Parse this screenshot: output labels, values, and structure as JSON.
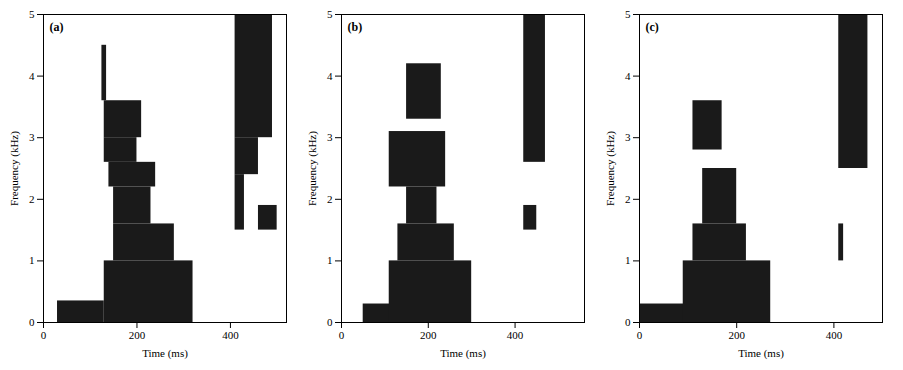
{
  "chart_data": [
    {
      "type": "spectrogram",
      "title": "(a)",
      "xlabel": "Time (ms)",
      "ylabel": "Frequency (kHz)",
      "xlim": [
        0,
        520
      ],
      "ylim": [
        0,
        5
      ],
      "xticks": [
        0,
        200,
        400
      ],
      "yticks": [
        0,
        1,
        2,
        3,
        4,
        5
      ],
      "color": "#1a1a1a",
      "grid": false,
      "regions": [
        {
          "t0": 30,
          "t1": 130,
          "f0": 0,
          "f1": 0.35
        },
        {
          "t0": 130,
          "t1": 320,
          "f0": 0,
          "f1": 1.0
        },
        {
          "t0": 150,
          "t1": 280,
          "f0": 1.0,
          "f1": 1.6
        },
        {
          "t0": 150,
          "t1": 230,
          "f0": 1.6,
          "f1": 2.2
        },
        {
          "t0": 140,
          "t1": 240,
          "f0": 2.2,
          "f1": 2.6
        },
        {
          "t0": 130,
          "t1": 200,
          "f0": 2.6,
          "f1": 3.0
        },
        {
          "t0": 130,
          "t1": 210,
          "f0": 3.0,
          "f1": 3.6
        },
        {
          "t0": 125,
          "t1": 135,
          "f0": 3.6,
          "f1": 4.5
        },
        {
          "t0": 410,
          "t1": 490,
          "f0": 3.0,
          "f1": 5.0
        },
        {
          "t0": 410,
          "t1": 460,
          "f0": 2.4,
          "f1": 3.0
        },
        {
          "t0": 410,
          "t1": 430,
          "f0": 1.5,
          "f1": 2.4
        },
        {
          "t0": 460,
          "t1": 500,
          "f0": 1.5,
          "f1": 1.9
        }
      ]
    },
    {
      "type": "spectrogram",
      "title": "(b)",
      "xlabel": "Time (ms)",
      "ylabel": "Frequency (kHz)",
      "xlim": [
        0,
        560
      ],
      "ylim": [
        0,
        5
      ],
      "xticks": [
        0,
        200,
        400
      ],
      "yticks": [
        0,
        1,
        2,
        3,
        4,
        5
      ],
      "color": "#1a1a1a",
      "grid": false,
      "regions": [
        {
          "t0": 50,
          "t1": 130,
          "f0": 0,
          "f1": 0.3
        },
        {
          "t0": 110,
          "t1": 300,
          "f0": 0,
          "f1": 1.0
        },
        {
          "t0": 130,
          "t1": 260,
          "f0": 1.0,
          "f1": 1.6
        },
        {
          "t0": 150,
          "t1": 220,
          "f0": 1.6,
          "f1": 2.2
        },
        {
          "t0": 110,
          "t1": 240,
          "f0": 2.2,
          "f1": 3.1
        },
        {
          "t0": 150,
          "t1": 230,
          "f0": 3.3,
          "f1": 4.2
        },
        {
          "t0": 420,
          "t1": 470,
          "f0": 2.6,
          "f1": 5.0
        },
        {
          "t0": 420,
          "t1": 450,
          "f0": 1.5,
          "f1": 1.9
        }
      ]
    },
    {
      "type": "spectrogram",
      "title": "(c)",
      "xlabel": "Time (ms)",
      "ylabel": "Frequency (kHz)",
      "xlim": [
        0,
        500
      ],
      "ylim": [
        0,
        5
      ],
      "xticks": [
        0,
        200,
        400
      ],
      "yticks": [
        0,
        1,
        2,
        3,
        4,
        5
      ],
      "color": "#1a1a1a",
      "grid": false,
      "regions": [
        {
          "t0": 0,
          "t1": 110,
          "f0": 0,
          "f1": 0.3
        },
        {
          "t0": 90,
          "t1": 270,
          "f0": 0,
          "f1": 1.0
        },
        {
          "t0": 110,
          "t1": 220,
          "f0": 1.0,
          "f1": 1.6
        },
        {
          "t0": 130,
          "t1": 200,
          "f0": 1.6,
          "f1": 2.5
        },
        {
          "t0": 110,
          "t1": 170,
          "f0": 2.8,
          "f1": 3.6
        },
        {
          "t0": 410,
          "t1": 470,
          "f0": 2.5,
          "f1": 5.0
        },
        {
          "t0": 410,
          "t1": 420,
          "f0": 1.0,
          "f1": 1.6
        }
      ]
    }
  ]
}
